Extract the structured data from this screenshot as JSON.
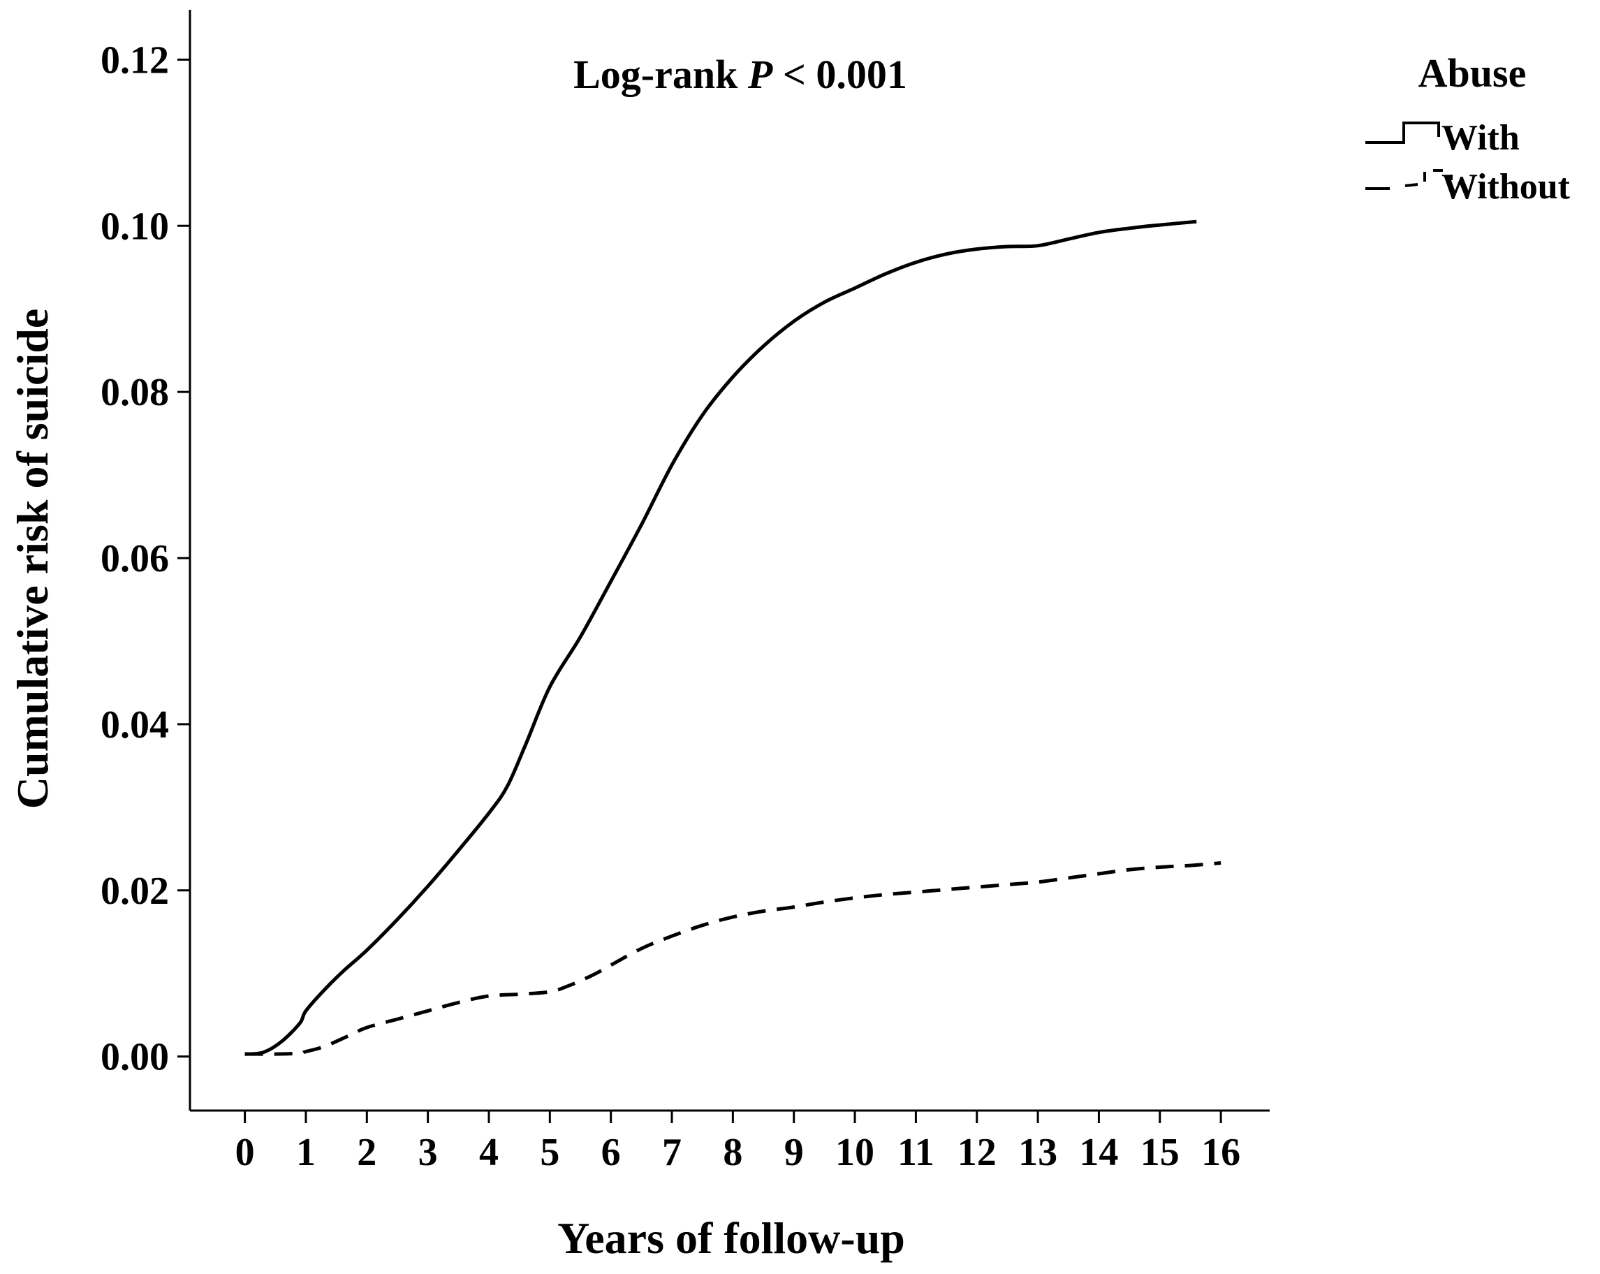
{
  "chart_data": {
    "type": "line",
    "title": "",
    "annotation": {
      "prefix": "Log-rank ",
      "italic": "P",
      "suffix": " < 0.001"
    },
    "xlabel": "Years of follow-up",
    "ylabel": "Cumulative risk of suicide",
    "xlim": [
      -0.9,
      16.8
    ],
    "ylim": [
      -0.0065,
      0.126
    ],
    "x_ticks": [
      0,
      1,
      2,
      3,
      4,
      5,
      6,
      7,
      8,
      9,
      10,
      11,
      12,
      13,
      14,
      15,
      16
    ],
    "x_tick_labels": [
      "0",
      "1",
      "2",
      "3",
      "4",
      "5",
      "6",
      "7",
      "8",
      "9",
      "10",
      "11",
      "12",
      "13",
      "14",
      "15",
      "16"
    ],
    "y_ticks": [
      0.0,
      0.02,
      0.04,
      0.06,
      0.08,
      0.1,
      0.12
    ],
    "y_tick_labels": [
      "0.00",
      "0.02",
      "0.04",
      "0.06",
      "0.08",
      "0.10",
      "0.12"
    ],
    "grid": false,
    "legend": {
      "title": "Abuse",
      "position": "top-right, outside plot"
    },
    "series": [
      {
        "name": "With",
        "style": "solid",
        "color": "#000000",
        "x": [
          0,
          0.3,
          0.6,
          0.9,
          1.0,
          1.3,
          1.6,
          2.0,
          2.5,
          3.0,
          3.5,
          4.0,
          4.3,
          4.6,
          5.0,
          5.5,
          6.0,
          6.5,
          7.0,
          7.5,
          8.0,
          8.5,
          9.0,
          9.5,
          10.0,
          10.5,
          11.0,
          11.5,
          12.0,
          12.5,
          13.0,
          13.5,
          14.0,
          14.5,
          15.0,
          15.6
        ],
        "y": [
          0.0003,
          0.0005,
          0.0018,
          0.004,
          0.0055,
          0.008,
          0.0102,
          0.0128,
          0.0165,
          0.0205,
          0.0248,
          0.0293,
          0.0325,
          0.0375,
          0.0445,
          0.0505,
          0.0572,
          0.064,
          0.0712,
          0.0772,
          0.0818,
          0.0855,
          0.0885,
          0.0908,
          0.0925,
          0.0942,
          0.0956,
          0.0966,
          0.0972,
          0.0975,
          0.0976,
          0.0984,
          0.0992,
          0.0997,
          0.1001,
          0.1005
        ]
      },
      {
        "name": "Without",
        "style": "dashed",
        "color": "#000000",
        "x": [
          0,
          0.5,
          0.9,
          1.0,
          1.3,
          1.7,
          2.0,
          2.5,
          3.0,
          3.5,
          4.0,
          4.5,
          5.0,
          5.3,
          5.7,
          6.0,
          6.5,
          7.0,
          7.5,
          8.0,
          8.5,
          9.0,
          9.5,
          10.0,
          10.5,
          11.0,
          11.5,
          12.0,
          12.5,
          13.0,
          13.5,
          14.0,
          14.5,
          15.0,
          15.5,
          16.0
        ],
        "y": [
          0.0003,
          0.0003,
          0.0004,
          0.0006,
          0.0012,
          0.0025,
          0.0035,
          0.0045,
          0.0055,
          0.0065,
          0.0073,
          0.0075,
          0.0078,
          0.0085,
          0.0098,
          0.011,
          0.013,
          0.0145,
          0.0158,
          0.0168,
          0.0175,
          0.018,
          0.0186,
          0.0191,
          0.0195,
          0.0198,
          0.0201,
          0.0204,
          0.0207,
          0.021,
          0.0215,
          0.022,
          0.0225,
          0.0228,
          0.023,
          0.0233
        ]
      }
    ]
  }
}
